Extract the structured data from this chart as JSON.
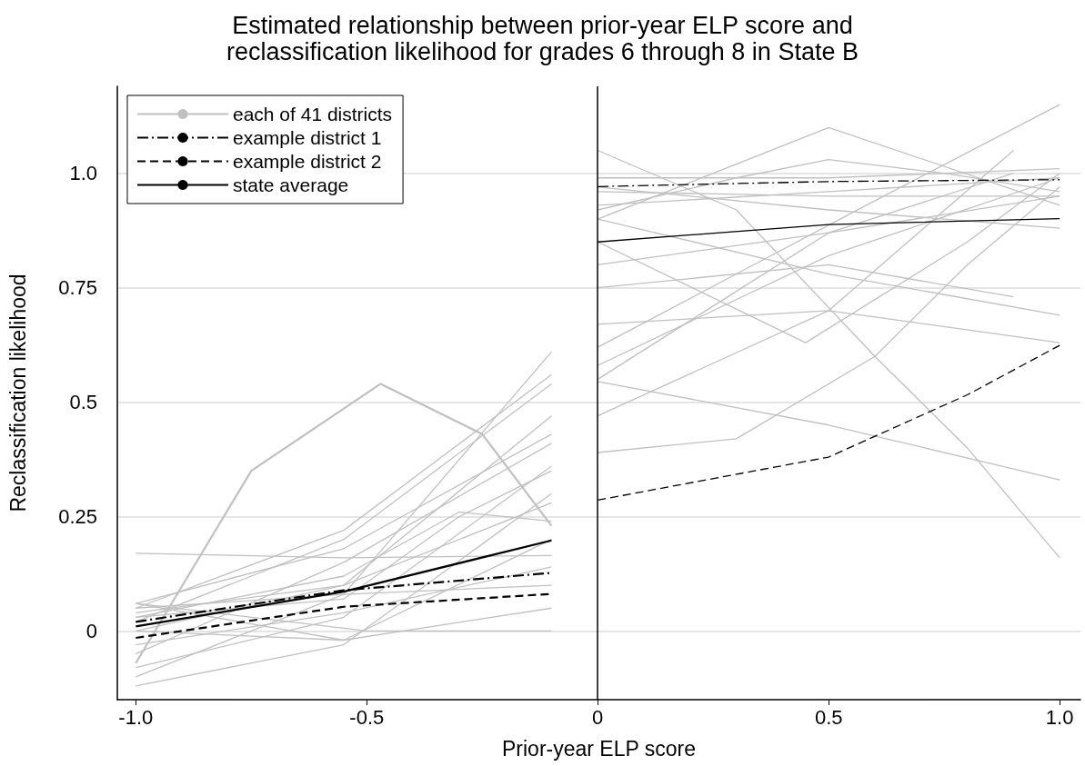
{
  "chart_data": {
    "type": "line",
    "title": "Estimated relationship between prior-year ELP score and\nreclassification likelihood for grades 6 through 8 in State B",
    "xlabel": "Prior-year ELP score",
    "ylabel": "Reclassification likelihood",
    "xlim": [
      -1.04,
      1.045
    ],
    "xticks": [
      {
        "value": -1,
        "label": "-1.0"
      },
      -0.5,
      0,
      0.5,
      {
        "value": 1,
        "label": "1.0"
      }
    ],
    "ylim": [
      -0.15,
      1.19
    ],
    "yticks": [
      0,
      0.25,
      0.5,
      0.75,
      {
        "value": 1,
        "label": "1.0"
      }
    ],
    "grid": "y",
    "legend": "top left",
    "marker": "none",
    "ref_lines": [
      {
        "axis": "x",
        "value": 0,
        "color": "#000000"
      }
    ],
    "series": [
      {
        "name": "each of 41 districts",
        "color": "#c0c0c0",
        "x": [
          -1,
          -0.75,
          -0.47,
          -0.25,
          -0.1
        ],
        "values": [
          -0.07,
          0.35,
          0.54,
          0.43,
          0.23
        ]
      },
      {
        "color": "#c0c0c0",
        "x": [
          -1,
          -0.55,
          -0.1
        ],
        "values": [
          0.17,
          0.16,
          0.165
        ]
      },
      {
        "color": "#c0c0c0",
        "x": [
          -1,
          -0.55,
          -0.1
        ],
        "values": [
          -0.1,
          0.08,
          0.61
        ]
      },
      {
        "color": "#c0c0c0",
        "x": [
          -1,
          -0.55,
          -0.1
        ],
        "values": [
          0.05,
          0.22,
          0.56
        ]
      },
      {
        "color": "#c0c0c0",
        "x": [
          -1,
          -0.55,
          -0.1
        ],
        "values": [
          0.02,
          0.2,
          0.54
        ]
      },
      {
        "color": "#c0c0c0",
        "x": [
          -1,
          -0.55,
          -0.1
        ],
        "values": [
          0,
          0.1,
          0.47
        ]
      },
      {
        "color": "#c0c0c0",
        "x": [
          -1,
          -0.55,
          -0.1
        ],
        "values": [
          0.06,
          0.18,
          0.43
        ]
      },
      {
        "color": "#c0c0c0",
        "x": [
          -1,
          -0.55,
          -0.1
        ],
        "values": [
          -0.05,
          0.15,
          0.41
        ]
      },
      {
        "color": "#c0c0c0",
        "x": [
          -1,
          -0.55,
          -0.3,
          -0.1
        ],
        "values": [
          0.03,
          0.07,
          0.25,
          0.35
        ]
      },
      {
        "color": "#c0c0c0",
        "x": [
          -1,
          -0.5,
          -0.1
        ],
        "values": [
          0.06,
          0,
          0
        ]
      },
      {
        "color": "#c0c0c0",
        "x": [
          -1,
          -0.55,
          -0.1
        ],
        "values": [
          -0.12,
          -0.03,
          0.3
        ]
      },
      {
        "color": "#c0c0c0",
        "x": [
          -1,
          -0.55,
          -0.3,
          -0.1
        ],
        "values": [
          0.03,
          0.12,
          0.26,
          0.24
        ]
      },
      {
        "color": "#c0c0c0",
        "x": [
          -1,
          -0.55,
          -0.1
        ],
        "values": [
          0.06,
          -0.02,
          0.05
        ]
      },
      {
        "color": "#c0c0c0",
        "x": [
          -1,
          -0.55,
          -0.1
        ],
        "values": [
          0,
          -0.02,
          0.2
        ]
      },
      {
        "color": "#c0c0c0",
        "x": [
          -1,
          -0.55,
          -0.1
        ],
        "values": [
          0.05,
          0.08,
          0.1
        ]
      },
      {
        "color": "#c0c0c0",
        "x": [
          -1,
          -0.55,
          -0.1
        ],
        "values": [
          -0.08,
          0.03,
          0.36
        ]
      },
      {
        "color": "#c0c0c0",
        "x": [
          -1,
          -0.55,
          -0.1
        ],
        "values": [
          0.04,
          0.1,
          0.28
        ]
      },
      {
        "color": "#c0c0c0",
        "x": [
          -1,
          -0.55,
          -0.1
        ],
        "values": [
          -0.03,
          0.04,
          0.14
        ]
      },
      {
        "color": "#c0c0c0",
        "x": [
          0,
          0.5,
          1
        ],
        "values": [
          0.9,
          1.1,
          0.93
        ]
      },
      {
        "color": "#c0c0c0",
        "x": [
          0,
          0.3,
          0.6,
          0.8,
          1
        ],
        "values": [
          1.05,
          0.92,
          0.6,
          0.4,
          0.16
        ]
      },
      {
        "color": "#c0c0c0",
        "x": [
          0,
          0.5,
          1
        ],
        "values": [
          0.545,
          0.45,
          0.33
        ]
      },
      {
        "color": "#c0c0c0",
        "x": [
          0,
          0.5,
          0.9
        ],
        "values": [
          0.47,
          0.7,
          1.05
        ]
      },
      {
        "color": "#c0c0c0",
        "x": [
          0,
          0.3,
          0.6,
          0.8,
          1
        ],
        "values": [
          0.39,
          0.42,
          0.6,
          0.8,
          0.97
        ]
      },
      {
        "color": "#c0c0c0",
        "x": [
          0,
          0.5,
          1
        ],
        "values": [
          0.58,
          0.82,
          0.99
        ]
      },
      {
        "color": "#c0c0c0",
        "x": [
          0,
          0.5,
          1
        ],
        "values": [
          0.67,
          0.7,
          0.63
        ]
      },
      {
        "color": "#c0c0c0",
        "x": [
          0,
          0.45,
          0.8,
          1
        ],
        "values": [
          0.85,
          0.63,
          0.85,
          1
        ]
      },
      {
        "color": "#c0c0c0",
        "x": [
          0,
          0.5,
          1
        ],
        "values": [
          0.96,
          0.95,
          0.95
        ]
      },
      {
        "color": "#c0c0c0",
        "x": [
          0,
          0.5,
          1
        ],
        "values": [
          0.99,
          0.99,
          1.01
        ]
      },
      {
        "color": "#c0c0c0",
        "x": [
          0,
          0.5,
          1
        ],
        "values": [
          0.93,
          0.96,
          0.99
        ]
      },
      {
        "color": "#c0c0c0",
        "x": [
          0,
          0.5,
          1
        ],
        "values": [
          0.8,
          0.87,
          0.95
        ]
      },
      {
        "color": "#c0c0c0",
        "x": [
          0,
          0.5,
          0.9
        ],
        "values": [
          0.75,
          0.8,
          0.73
        ]
      },
      {
        "color": "#c0c0c0",
        "x": [
          0,
          0.5,
          1
        ],
        "values": [
          0.9,
          0.78,
          0.69
        ]
      },
      {
        "color": "#c0c0c0",
        "x": [
          0,
          0.3,
          0.6,
          1
        ],
        "values": [
          0.62,
          0.78,
          0.94,
          1.15
        ]
      },
      {
        "color": "#c0c0c0",
        "x": [
          0,
          0.5,
          0.9
        ],
        "values": [
          0.55,
          0.87,
          1
        ]
      },
      {
        "color": "#c0c0c0",
        "x": [
          0,
          0.5,
          1
        ],
        "values": [
          0.97,
          0.92,
          0.88
        ]
      },
      {
        "color": "#c0c0c0",
        "x": [
          0,
          0.3,
          0.5,
          0.75,
          1
        ],
        "values": [
          0.92,
          0.99,
          1.03,
          1,
          0.96
        ]
      },
      {
        "name": "example district 1",
        "color": "#000000",
        "line_style": "dashdot",
        "x": [
          -1,
          -0.55,
          -0.1
        ],
        "values": [
          0.02,
          0.089,
          0.127
        ]
      },
      {
        "color": "#000000",
        "line_style": "dashdot",
        "x": [
          0,
          0.5,
          1
        ],
        "values": [
          0.971,
          0.982,
          0.986
        ]
      },
      {
        "name": "example district 2",
        "color": "#000000",
        "line_style": "dashed",
        "x": [
          -1,
          -0.55,
          -0.1
        ],
        "values": [
          -0.015,
          0.053,
          0.081
        ]
      },
      {
        "color": "#000000",
        "line_style": "dashed",
        "x": [
          0,
          0.5,
          0.8,
          1
        ],
        "values": [
          0.286,
          0.38,
          0.516,
          0.624
        ]
      },
      {
        "name": "state average",
        "color": "#000000",
        "line_style": "solid",
        "x": [
          -1,
          -0.55,
          -0.1
        ],
        "values": [
          0.01,
          0.086,
          0.198
        ]
      },
      {
        "color": "#000000",
        "line_style": "solid",
        "x": [
          0,
          0.5,
          1
        ],
        "values": [
          0.85,
          0.888,
          0.901
        ]
      }
    ]
  }
}
